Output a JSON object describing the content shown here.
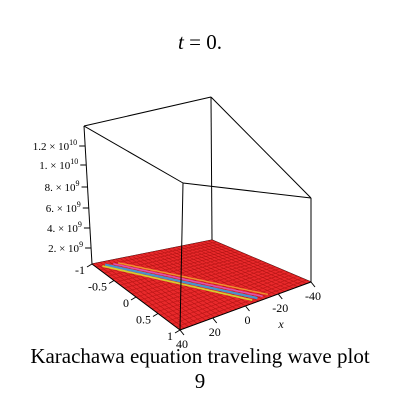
{
  "chart_data": {
    "type": "surface",
    "title_prefix": "t",
    "title_value": "= 0.",
    "caption_line1": "Karachawa equation  traveling wave plot",
    "caption_line2": "9",
    "x_axis": {
      "label": "x",
      "ticks": [
        "-40",
        "-20",
        "0",
        "20",
        "40"
      ]
    },
    "y_axis": {
      "ticks": [
        "-1",
        "-0.5",
        "0",
        "0.5",
        "1"
      ]
    },
    "z_axis": {
      "ticks": [
        {
          "mant": "2.",
          "exp": "9"
        },
        {
          "mant": "4.",
          "exp": "9"
        },
        {
          "mant": "6.",
          "exp": "9"
        },
        {
          "mant": "8.",
          "exp": "9"
        },
        {
          "mant": "1.",
          "exp": "10"
        },
        {
          "mant": "1.2",
          "exp": "10"
        }
      ]
    },
    "surface_color": "#e8292b",
    "grid_color": "#b51515",
    "stripe_colors": [
      "#3aa0e0",
      "#d6e030",
      "#e055c0",
      "#f0a030"
    ]
  }
}
